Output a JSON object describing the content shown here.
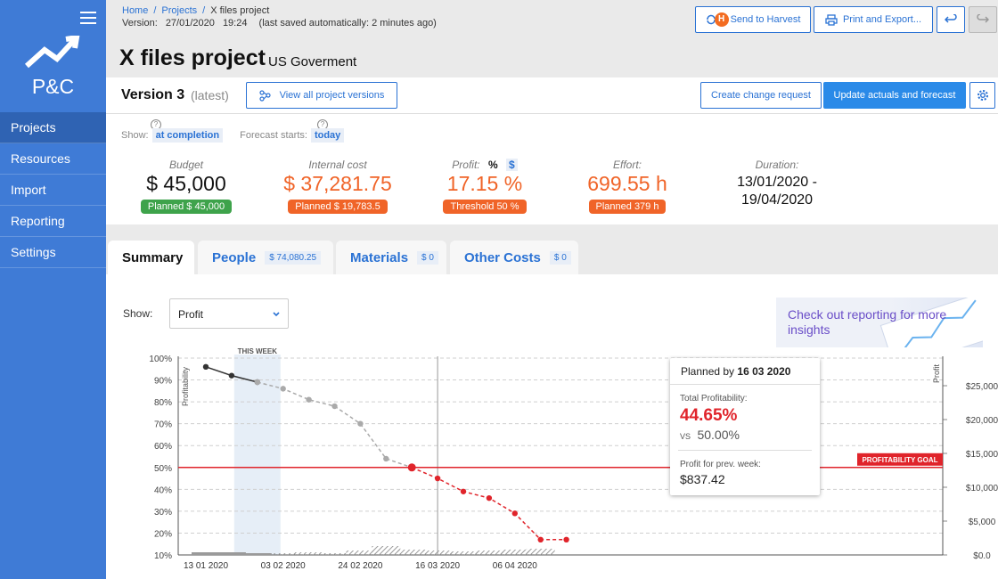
{
  "sidebar": {
    "logo_text": "P&C",
    "items": [
      {
        "label": "Projects",
        "active": true
      },
      {
        "label": "Resources"
      },
      {
        "label": "Import"
      },
      {
        "label": "Reporting"
      },
      {
        "label": "Settings"
      }
    ]
  },
  "header": {
    "breadcrumbs": [
      "Home",
      "Projects",
      "X files project"
    ],
    "version_label": "Version:",
    "version_date": "27/01/2020",
    "version_time": "19:24",
    "autosave": "(last saved automatically: 2 minutes ago)",
    "title": "X files project",
    "client": "US Goverment",
    "harvest_icon": "H",
    "send_harvest_label": "Send to Harvest",
    "print_label": "Print and Export..."
  },
  "version_bar": {
    "title": "Version 3",
    "subtitle": "(latest)",
    "view_all_label": "View all project versions",
    "change_request_label": "Create change request",
    "update_label": "Update actuals and forecast"
  },
  "filters": {
    "show_label": "Show:",
    "show_value": "at completion",
    "forecast_label": "Forecast starts:",
    "forecast_value": "today",
    "help_glyph": "?"
  },
  "kpis": {
    "budget": {
      "label": "Budget",
      "value": "$ 45,000",
      "badge": "Planned $ 45,000"
    },
    "internal_cost": {
      "label": "Internal cost",
      "value": "$ 37,281.75",
      "badge": "Planned $ 19,783.5"
    },
    "profit": {
      "label": "Profit:",
      "toggle_pct": "%",
      "toggle_usd": "$",
      "value": "17.15 %",
      "badge": "Threshold 50 %"
    },
    "effort": {
      "label": "Effort:",
      "value": "699.55 h",
      "badge": "Planned 379 h"
    },
    "duration": {
      "label": "Duration:",
      "value_line1": "13/01/2020 -",
      "value_line2": "19/04/2020"
    }
  },
  "tabs": [
    {
      "label": "Summary",
      "amount": ""
    },
    {
      "label": "People",
      "amount": "$ 74,080.25"
    },
    {
      "label": "Materials",
      "amount": "$ 0"
    },
    {
      "label": "Other Costs",
      "amount": "$ 0"
    }
  ],
  "chart_controls": {
    "show_label": "Show:",
    "select_value": "Profit"
  },
  "promo": {
    "text": "Check out reporting for more insights"
  },
  "tooltip": {
    "title_prefix": "Planned by",
    "title_date": "16 03 2020",
    "total_label": "Total Profitability:",
    "total_value": "44.65%",
    "vs_label": "VS",
    "vs_value": "50.00%",
    "prev_label": "Profit for prev. week:",
    "prev_value": "$837.42"
  },
  "colors": {
    "primary": "#2a72d4",
    "sidebar": "#3f7bd6",
    "orange": "#f06428",
    "green": "#3ea34b",
    "red": "#e0242b"
  },
  "chart_data": {
    "type": "line",
    "y_left_label": "Profitability",
    "y_right_label": "Profit",
    "y_left_ticks": [
      "10%",
      "20%",
      "30%",
      "40%",
      "50%",
      "60%",
      "70%",
      "80%",
      "90%",
      "100%"
    ],
    "y_right_ticks": [
      "$0.0",
      "$5,000",
      "$10,000",
      "$15,000",
      "$20,000",
      "$25,000"
    ],
    "x_ticks": [
      "13 01 2020",
      "03 02 2020",
      "24 02 2020",
      "16 03 2020",
      "06 04 2020"
    ],
    "this_week_label": "THIS WEEK",
    "goal_label": "PROFITABILITY GOAL",
    "goal_value": 50,
    "ylim_left": [
      10,
      100
    ],
    "series": [
      {
        "kind": "actual",
        "x": [
          "2020-01-13",
          "2020-01-20",
          "2020-01-27"
        ],
        "y": [
          96,
          92,
          89
        ]
      },
      {
        "kind": "forecast_above_goal",
        "x": [
          "2020-01-27",
          "2020-02-03",
          "2020-02-10",
          "2020-02-17",
          "2020-02-24",
          "2020-03-02",
          "2020-03-09"
        ],
        "y": [
          89,
          86,
          81,
          78,
          70,
          54,
          50
        ]
      },
      {
        "kind": "forecast_below_goal",
        "x": [
          "2020-03-09",
          "2020-03-16",
          "2020-03-23",
          "2020-03-30",
          "2020-04-06",
          "2020-04-13",
          "2020-04-20"
        ],
        "y": [
          50,
          45,
          39,
          36,
          29,
          17,
          17
        ]
      }
    ]
  }
}
